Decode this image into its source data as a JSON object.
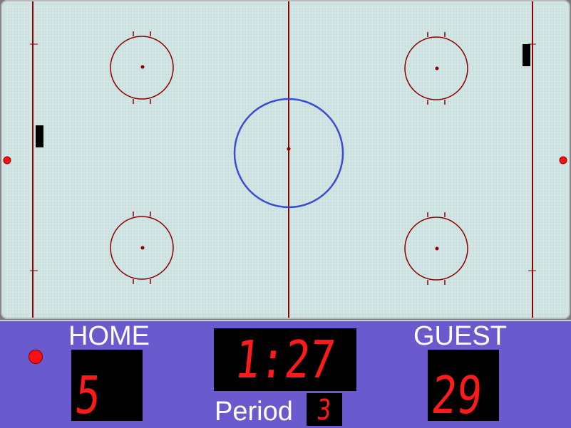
{
  "scoreboard": {
    "home_label": "HOME",
    "guest_label": "GUEST",
    "home_score": "5",
    "guest_score": "29",
    "clock": "1:27",
    "period_label": "Period",
    "period": "3",
    "possession": "home"
  },
  "colors": {
    "ice": "#cfe3e3",
    "red_line": "#8b0000",
    "blue_circle": "#3a4bd0",
    "board": "#6a5acd",
    "led": "#ff1a1a",
    "led_bg": "#000000",
    "label": "#ffffff"
  },
  "icons": {
    "possession": "red-dot-icon",
    "goal": "goal-net-icon",
    "face_off_dot": "face-off-dot-icon",
    "side_marker": "red-marker-icon"
  }
}
